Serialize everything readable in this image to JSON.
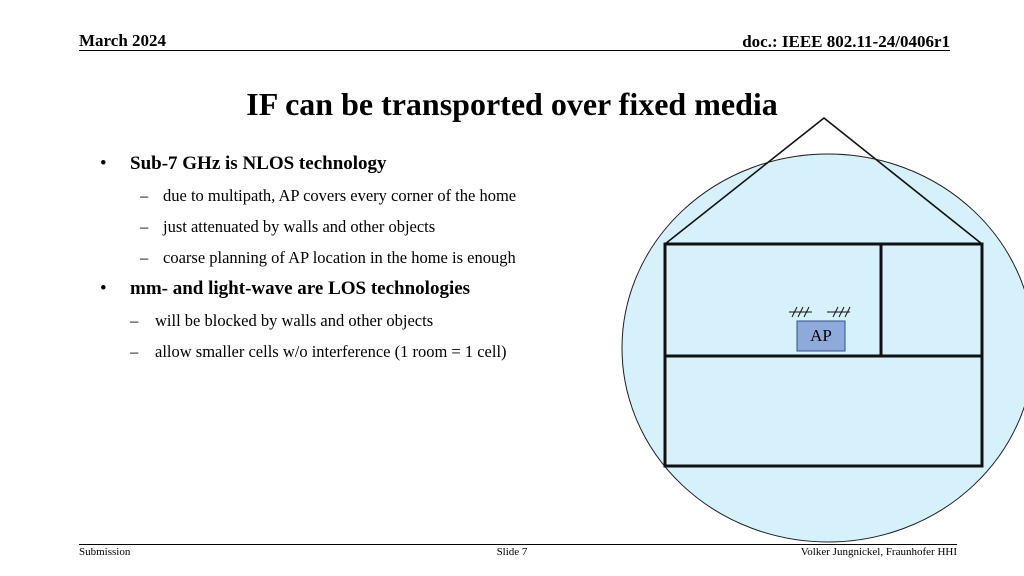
{
  "header": {
    "date": "March 2024",
    "doc_id": "doc.: IEEE 802.11-24/0406r1"
  },
  "title": "IF can be transported over fixed media",
  "bullets": [
    {
      "text": "Sub-7 GHz is NLOS technology",
      "sub": [
        "due to multipath, AP covers every corner of the home",
        "just attenuated by walls and other objects",
        "coarse planning of AP location in the home is enough"
      ]
    },
    {
      "text": "mm- and light-wave are LOS technologies",
      "sub": [
        "will be blocked by walls and other objects",
        "allow smaller cells w/o interference (1 room = 1 cell)"
      ]
    }
  ],
  "diagram": {
    "ap_label": "AP",
    "coverage_fill": "#d6f1fb",
    "ap_fill": "#8eaadb"
  },
  "footer": {
    "left": "Submission",
    "center": "Slide 7",
    "right": "Volker Jungnickel, Fraunhofer HHI"
  }
}
